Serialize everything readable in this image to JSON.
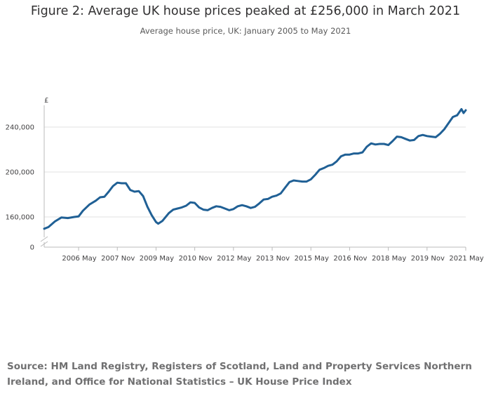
{
  "chart_data": {
    "type": "line",
    "title": "Figure 2: Average UK house prices peaked at £256,000 in March 2021",
    "subtitle": "Average house price, UK: January 2005 to May 2021",
    "ylabel": "£",
    "xlabel": "",
    "ylim": [
      0,
      260000
    ],
    "y_axis_break": true,
    "y_ticks": [
      {
        "value": 0,
        "label": "0"
      },
      {
        "value": 160000,
        "label": "160,000"
      },
      {
        "value": 200000,
        "label": "200,000"
      },
      {
        "value": 240000,
        "label": "240,000"
      }
    ],
    "x_ticks": [
      "2006 May",
      "2007 Nov",
      "2009 May",
      "2010 Nov",
      "2012 May",
      "2013 Nov",
      "2015 May",
      "2016 Nov",
      "2018 May",
      "2019 Nov",
      "2021 May"
    ],
    "grid": true,
    "legend": "none",
    "colors": {
      "line": "#206095",
      "grid": "#e0e0e0",
      "axis": "#bbbbbb"
    },
    "series": [
      {
        "name": "Average house price",
        "start": "2005-01",
        "end": "2021-05",
        "points": [
          [
            "2005-01",
            149500
          ],
          [
            "2005-03",
            151000
          ],
          [
            "2005-06",
            156000
          ],
          [
            "2005-09",
            159500
          ],
          [
            "2005-12",
            159000
          ],
          [
            "2006-03",
            160000
          ],
          [
            "2006-05",
            160500
          ],
          [
            "2006-07",
            165500
          ],
          [
            "2006-10",
            171000
          ],
          [
            "2007-01",
            174500
          ],
          [
            "2007-03",
            177500
          ],
          [
            "2007-05",
            178000
          ],
          [
            "2007-07",
            182500
          ],
          [
            "2007-09",
            187500
          ],
          [
            "2007-11",
            190500
          ],
          [
            "2008-01",
            190000
          ],
          [
            "2008-03",
            190000
          ],
          [
            "2008-05",
            184000
          ],
          [
            "2008-07",
            182500
          ],
          [
            "2008-09",
            183000
          ],
          [
            "2008-11",
            178500
          ],
          [
            "2009-01",
            169000
          ],
          [
            "2009-03",
            161500
          ],
          [
            "2009-05",
            155500
          ],
          [
            "2009-06",
            154000
          ],
          [
            "2009-08",
            156500
          ],
          [
            "2009-11",
            163500
          ],
          [
            "2010-01",
            166500
          ],
          [
            "2010-03",
            167500
          ],
          [
            "2010-05",
            168500
          ],
          [
            "2010-07",
            170000
          ],
          [
            "2010-09",
            173000
          ],
          [
            "2010-11",
            172500
          ],
          [
            "2011-01",
            168500
          ],
          [
            "2011-03",
            166500
          ],
          [
            "2011-05",
            166000
          ],
          [
            "2011-07",
            168000
          ],
          [
            "2011-09",
            169500
          ],
          [
            "2011-11",
            169000
          ],
          [
            "2012-01",
            167500
          ],
          [
            "2012-03",
            166000
          ],
          [
            "2012-05",
            167000
          ],
          [
            "2012-07",
            169500
          ],
          [
            "2012-09",
            170500
          ],
          [
            "2012-11",
            169500
          ],
          [
            "2013-01",
            168000
          ],
          [
            "2013-03",
            169000
          ],
          [
            "2013-05",
            172000
          ],
          [
            "2013-07",
            175500
          ],
          [
            "2013-09",
            176000
          ],
          [
            "2013-11",
            178000
          ],
          [
            "2014-01",
            179000
          ],
          [
            "2014-03",
            181000
          ],
          [
            "2014-05",
            186000
          ],
          [
            "2014-07",
            191000
          ],
          [
            "2014-09",
            192500
          ],
          [
            "2014-11",
            192000
          ],
          [
            "2015-01",
            191500
          ],
          [
            "2015-03",
            191500
          ],
          [
            "2015-05",
            193500
          ],
          [
            "2015-07",
            197500
          ],
          [
            "2015-09",
            202000
          ],
          [
            "2015-11",
            203500
          ],
          [
            "2016-01",
            205500
          ],
          [
            "2016-03",
            206500
          ],
          [
            "2016-05",
            209500
          ],
          [
            "2016-07",
            214000
          ],
          [
            "2016-09",
            215500
          ],
          [
            "2016-11",
            215500
          ],
          [
            "2017-01",
            216500
          ],
          [
            "2017-03",
            216500
          ],
          [
            "2017-05",
            217500
          ],
          [
            "2017-07",
            222500
          ],
          [
            "2017-09",
            225500
          ],
          [
            "2017-11",
            224500
          ],
          [
            "2018-01",
            225000
          ],
          [
            "2018-03",
            225000
          ],
          [
            "2018-05",
            224000
          ],
          [
            "2018-07",
            227500
          ],
          [
            "2018-09",
            231500
          ],
          [
            "2018-11",
            231000
          ],
          [
            "2019-01",
            229500
          ],
          [
            "2019-03",
            228000
          ],
          [
            "2019-05",
            228500
          ],
          [
            "2019-07",
            232000
          ],
          [
            "2019-09",
            233000
          ],
          [
            "2019-11",
            232000
          ],
          [
            "2020-01",
            231500
          ],
          [
            "2020-03",
            231000
          ],
          [
            "2020-05",
            234000
          ],
          [
            "2020-07",
            238000
          ],
          [
            "2020-09",
            243500
          ],
          [
            "2020-11",
            249000
          ],
          [
            "2021-01",
            250500
          ],
          [
            "2021-03",
            256000
          ],
          [
            "2021-04",
            252500
          ],
          [
            "2021-05",
            255000
          ]
        ]
      }
    ]
  },
  "source": "Source: HM Land Registry, Registers of Scotland, Land and Property Services Northern Ireland, and Office for National Statistics – UK House Price Index"
}
